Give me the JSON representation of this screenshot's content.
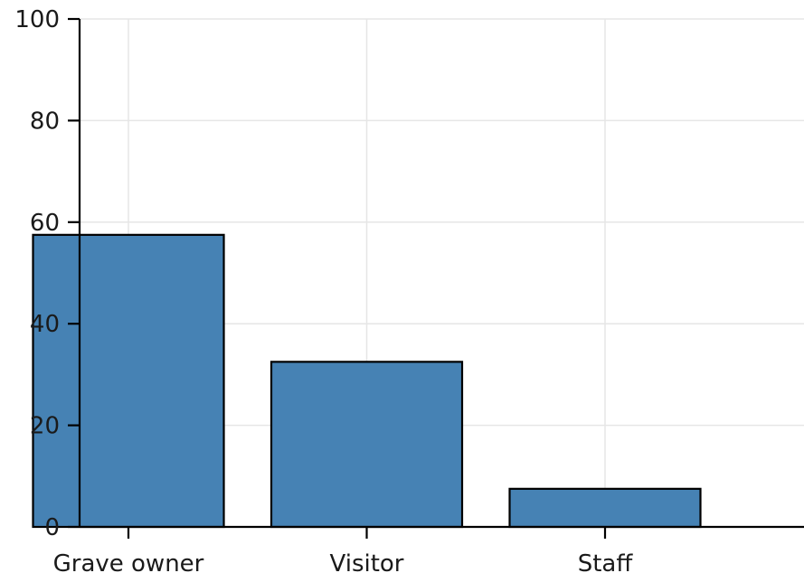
{
  "chart_data": {
    "type": "bar",
    "categories": [
      "Grave owner",
      "Visitor",
      "Staff"
    ],
    "values": [
      57.5,
      32.5,
      7.5
    ],
    "ylim": [
      0,
      100
    ],
    "yticks": [
      0,
      20,
      40,
      60,
      80,
      100
    ],
    "title": "",
    "xlabel": "",
    "ylabel": "",
    "grid": true,
    "bar_color": "#4682b4",
    "edge_color": "#000000"
  }
}
